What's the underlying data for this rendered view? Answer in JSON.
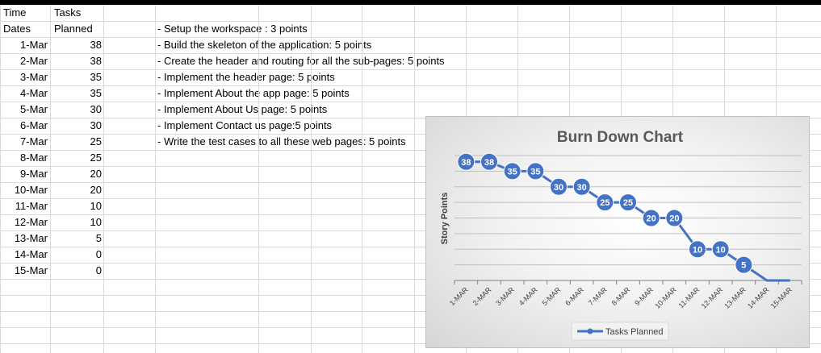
{
  "sheet": {
    "header1": {
      "a": "Time",
      "b": "Tasks"
    },
    "header2": {
      "a": "Dates",
      "b": "Planned"
    },
    "rows": [
      {
        "date": "1-Mar",
        "planned": "38"
      },
      {
        "date": "2-Mar",
        "planned": "38"
      },
      {
        "date": "3-Mar",
        "planned": "35"
      },
      {
        "date": "4-Mar",
        "planned": "35"
      },
      {
        "date": "5-Mar",
        "planned": "30"
      },
      {
        "date": "6-Mar",
        "planned": "30"
      },
      {
        "date": "7-Mar",
        "planned": "25"
      },
      {
        "date": "8-Mar",
        "planned": "25"
      },
      {
        "date": "9-Mar",
        "planned": "20"
      },
      {
        "date": "10-Mar",
        "planned": "20"
      },
      {
        "date": "11-Mar",
        "planned": "10"
      },
      {
        "date": "12-Mar",
        "planned": "10"
      },
      {
        "date": "13-Mar",
        "planned": "5"
      },
      {
        "date": "14-Mar",
        "planned": "0"
      },
      {
        "date": "15-Mar",
        "planned": "0"
      }
    ],
    "notes": [
      "- Setup the workspace : 3 points",
      "- Build the skeleton of the application: 5 points",
      "- Create the header and routing for all the sub-pages: 5 points",
      "- Implement the header page: 5 points",
      "- Implement About the app page: 5 points",
      "- Implement About Us page: 5 points",
      "- Implement Contact us page:5 points",
      "- Write the test cases to all these web pages: 5 points"
    ]
  },
  "chart_data": {
    "type": "line",
    "title": "Burn Down Chart",
    "xlabel": "",
    "ylabel": "Story Points",
    "categories": [
      "1-MAR",
      "2-MAR",
      "3-MAR",
      "4-MAR",
      "5-MAR",
      "6-MAR",
      "7-MAR",
      "8-MAR",
      "9-MAR",
      "10-MAR",
      "11-MAR",
      "12-MAR",
      "13-MAR",
      "14-MAR",
      "15-MAR"
    ],
    "series": [
      {
        "name": "Tasks Planned",
        "values": [
          38,
          38,
          35,
          35,
          30,
          30,
          25,
          25,
          20,
          20,
          10,
          10,
          5,
          0,
          0
        ]
      }
    ],
    "data_labels": [
      "38",
      "38",
      "35",
      "35",
      "30",
      "30",
      "25",
      "25",
      "20",
      "20",
      "10",
      "10",
      "5"
    ],
    "ylim": [
      0,
      40
    ],
    "grid": true,
    "legend": "bottom",
    "line_color": "#4472c4"
  }
}
